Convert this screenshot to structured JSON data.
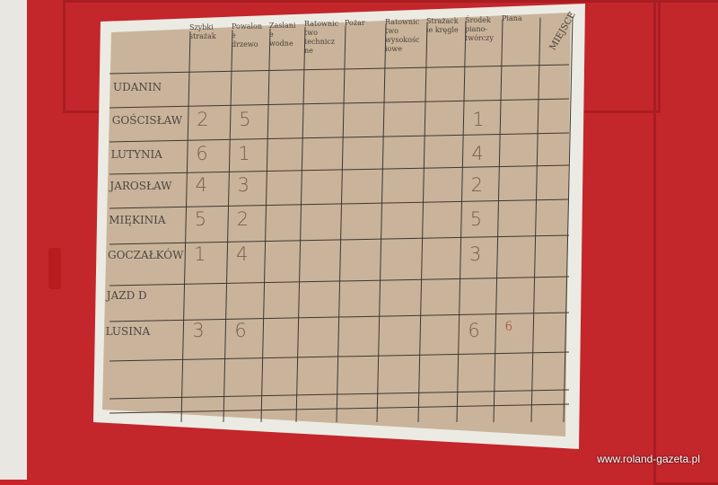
{
  "board": {
    "headers": [
      "Szybki strażak",
      "Powalone drzewo",
      "Zaslanie wodne",
      "Ratownictwo techniczne",
      "Pożar",
      "Ratownictwo wysokościowe",
      "Strażackie kręgle",
      "Środek piano-twórczy",
      "Piana",
      "MIEJSCE"
    ],
    "rows": [
      {
        "team": "UDANIN",
        "scores": [
          "",
          "",
          "",
          "",
          "",
          "",
          "",
          "",
          "",
          ""
        ]
      },
      {
        "team": "GOŚCISŁAW",
        "scores": [
          "2",
          "5",
          "",
          "",
          "",
          "",
          "",
          "1",
          "",
          ""
        ]
      },
      {
        "team": "LUTYNIA",
        "scores": [
          "6",
          "1",
          "",
          "",
          "",
          "",
          "",
          "4",
          "",
          ""
        ]
      },
      {
        "team": "JAROSŁAW",
        "scores": [
          "4",
          "3",
          "",
          "",
          "",
          "",
          "",
          "2",
          "",
          ""
        ]
      },
      {
        "team": "MIĘKINIA",
        "scores": [
          "5",
          "2",
          "",
          "",
          "",
          "",
          "",
          "5",
          "",
          ""
        ]
      },
      {
        "team": "GOCZAŁKÓW",
        "scores": [
          "1",
          "4",
          "",
          "",
          "",
          "",
          "",
          "3",
          "",
          ""
        ]
      },
      {
        "team": "JAZD D",
        "scores": [
          "",
          "",
          "",
          "",
          "",
          "",
          "",
          "",
          "",
          ""
        ]
      },
      {
        "team": "LUSINA",
        "scores": [
          "3",
          "6",
          "",
          "",
          "",
          "",
          "",
          "6",
          "6",
          ""
        ]
      }
    ]
  },
  "watermark": "www.roland-gazeta.pl",
  "colors": {
    "door": "#c3262b",
    "paper": "#c9b59c",
    "tape": "#ecebe3"
  }
}
